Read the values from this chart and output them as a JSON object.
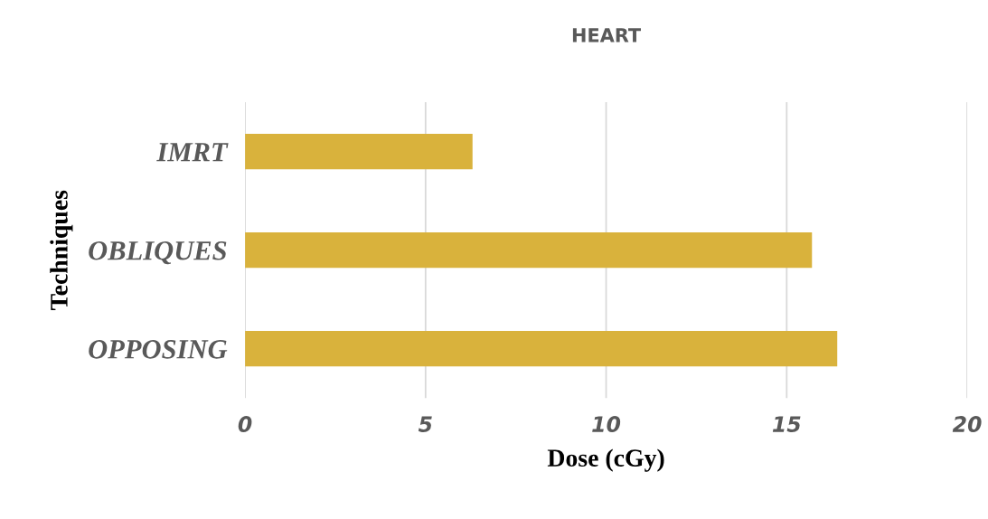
{
  "chart_data": {
    "type": "bar",
    "orientation": "horizontal",
    "title": "HEART",
    "xlabel": "Dose (cGy)",
    "ylabel": "Techniques",
    "categories": [
      "IMRT",
      "OBLIQUES",
      "OPPOSING"
    ],
    "values": [
      6.3,
      15.7,
      16.4
    ],
    "color": "#d9b23c",
    "xlim": [
      0,
      20
    ],
    "xticks": [
      0,
      5,
      10,
      15,
      20
    ],
    "grid": "x"
  }
}
